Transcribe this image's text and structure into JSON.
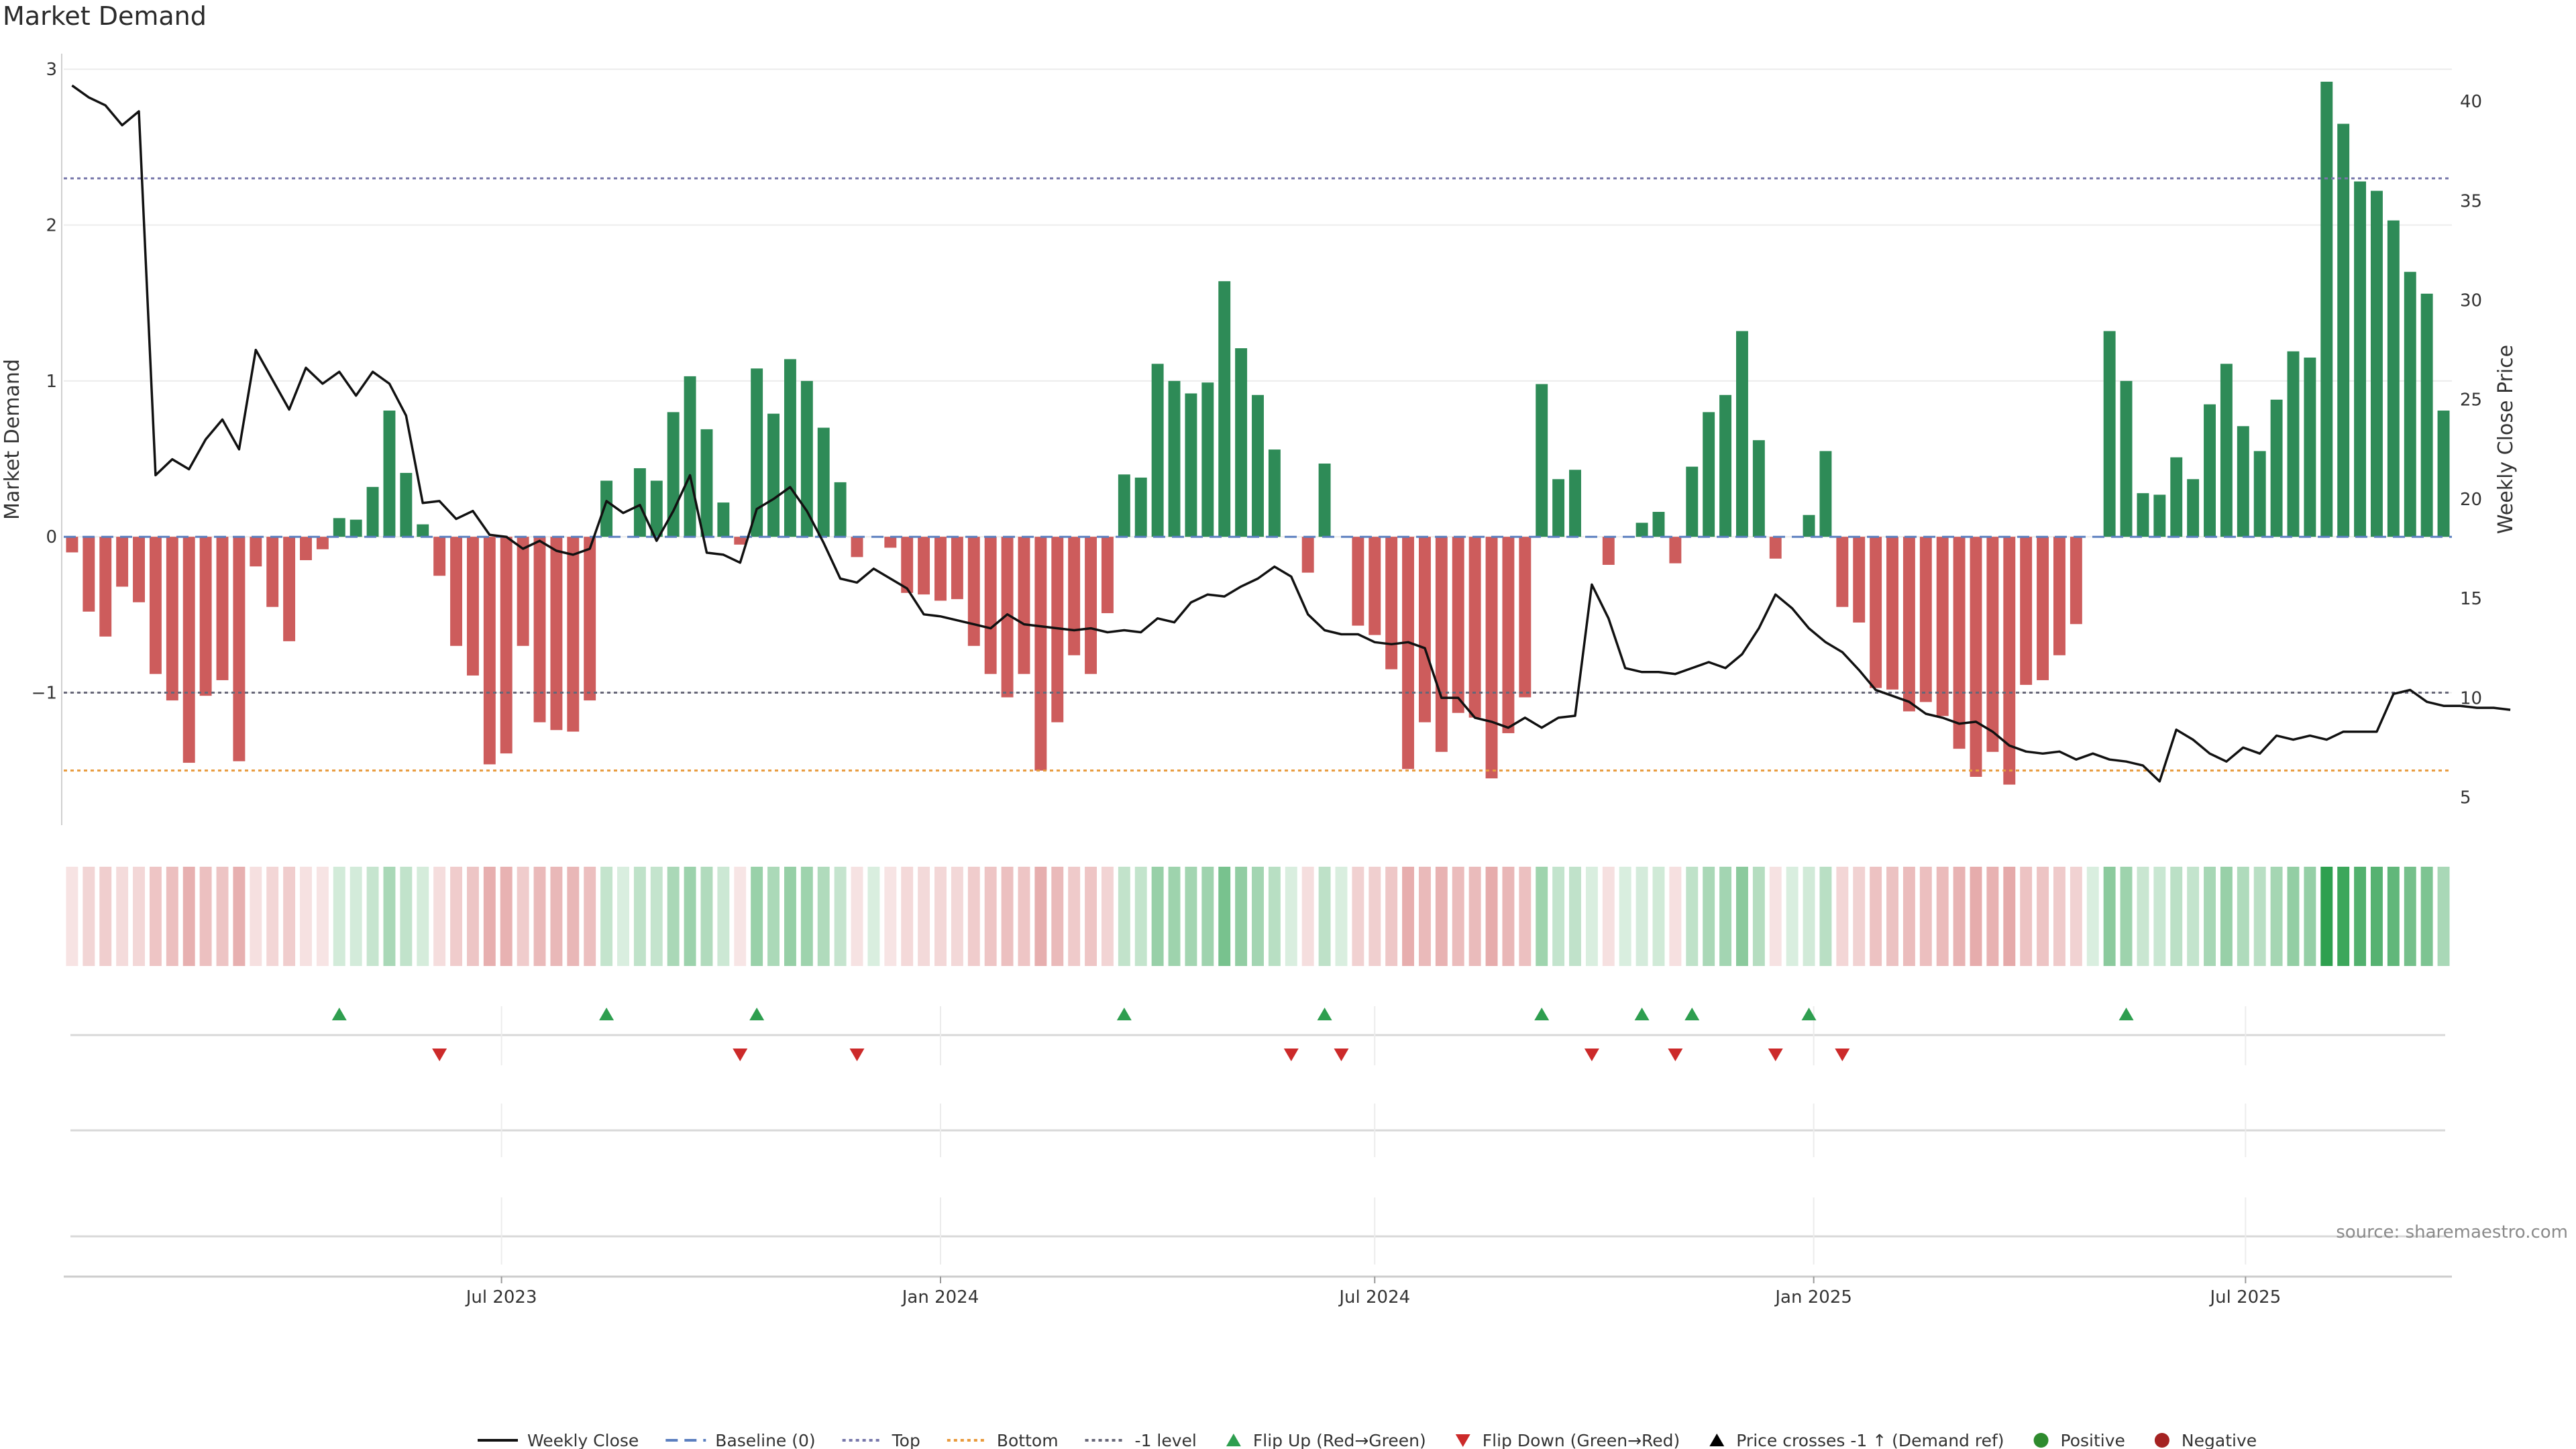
{
  "title": "Market Demand",
  "source": "source: sharemaestro.com",
  "colors": {
    "positive": "#2e8b57",
    "negative": "#cd5c5c",
    "price": "#111111",
    "baseline": "#5b7fbf",
    "top": "#7777aa",
    "bottom": "#e89a3c",
    "level": "#666677",
    "flip_up": "#2e9e4f",
    "flip_down": "#cc2a2a"
  },
  "chart_data": {
    "type": "bar",
    "x_start": "2023-01-02",
    "x_step_days": 7,
    "ylabel": "Market Demand",
    "y2label": "Weekly Close Price",
    "ylim": [
      -1.85,
      3.1
    ],
    "y_ticks": [
      3,
      2,
      1,
      0,
      -1
    ],
    "y_tick_labels": [
      "3",
      "2",
      "1",
      "0",
      "−1"
    ],
    "y2lim": [
      3.6,
      42.4
    ],
    "y2_ticks": [
      40,
      35,
      30,
      25,
      20,
      15,
      10,
      5
    ],
    "x_ticks": [
      {
        "label": "Jul 2023",
        "date": "2023-07-01"
      },
      {
        "label": "Jan 2024",
        "date": "2024-01-01"
      },
      {
        "label": "Jul 2024",
        "date": "2024-07-01"
      },
      {
        "label": "Jan 2025",
        "date": "2025-01-01"
      },
      {
        "label": "Jul 2025",
        "date": "2025-07-01"
      }
    ],
    "reference_lines": {
      "baseline": 0,
      "top": 2.3,
      "bottom": -1.5,
      "level": -1
    },
    "demand": [
      -0.1,
      -0.48,
      -0.64,
      -0.32,
      -0.42,
      -0.88,
      -1.05,
      -1.45,
      -1.02,
      -0.92,
      -1.44,
      -0.19,
      -0.45,
      -0.67,
      -0.15,
      -0.08,
      0.12,
      0.11,
      0.32,
      0.81,
      0.41,
      0.08,
      -0.25,
      -0.7,
      -0.89,
      -1.46,
      -1.39,
      -0.7,
      -1.19,
      -1.24,
      -1.25,
      -1.05,
      0.36,
      0.0,
      0.44,
      0.36,
      0.8,
      1.03,
      0.69,
      0.22,
      -0.05,
      1.08,
      0.79,
      1.14,
      1.0,
      0.7,
      0.35,
      -0.13,
      0.0,
      -0.07,
      -0.36,
      -0.37,
      -0.41,
      -0.4,
      -0.7,
      -0.88,
      -1.03,
      -0.88,
      -1.5,
      -1.19,
      -0.76,
      -0.88,
      -0.49,
      0.4,
      0.38,
      1.11,
      1.0,
      0.92,
      0.99,
      1.64,
      1.21,
      0.91,
      0.56,
      0.0,
      -0.23,
      0.47,
      0.0,
      -0.57,
      -0.63,
      -0.85,
      -1.49,
      -1.19,
      -1.38,
      -1.13,
      -1.16,
      -1.55,
      -1.26,
      -1.03,
      0.98,
      0.37,
      0.43,
      0.0,
      -0.18,
      0.0,
      0.09,
      0.16,
      -0.17,
      0.45,
      0.8,
      0.91,
      1.32,
      0.62,
      -0.14,
      0.0,
      0.14,
      0.55,
      -0.45,
      -0.55,
      -0.97,
      -0.98,
      -1.12,
      -1.06,
      -1.15,
      -1.36,
      -1.54,
      -1.38,
      -1.59,
      -0.95,
      -0.92,
      -0.76,
      -0.56,
      0.0,
      1.32,
      1.0,
      0.28,
      0.27,
      0.51,
      0.37,
      0.85,
      1.11,
      0.71,
      0.55,
      0.88,
      1.19,
      1.15,
      2.92,
      2.65,
      2.28,
      2.22,
      2.03,
      1.7,
      1.56,
      0.81
    ],
    "weekly_close": [
      40.8,
      40.2,
      39.8,
      38.8,
      39.5,
      21.2,
      22.0,
      21.5,
      23.0,
      24.0,
      22.5,
      27.5,
      26.0,
      24.5,
      26.6,
      25.8,
      26.4,
      25.2,
      26.4,
      25.8,
      24.2,
      19.8,
      19.9,
      19.0,
      19.4,
      18.2,
      18.1,
      17.5,
      17.9,
      17.4,
      17.2,
      17.5,
      19.9,
      19.3,
      19.7,
      17.9,
      19.4,
      21.2,
      17.3,
      17.2,
      16.8,
      19.5,
      20.0,
      20.6,
      19.4,
      17.8,
      16.0,
      15.8,
      16.5,
      16.0,
      15.5,
      14.2,
      14.1,
      13.9,
      13.7,
      13.5,
      14.2,
      13.7,
      13.6,
      13.5,
      13.4,
      13.5,
      13.3,
      13.4,
      13.3,
      14.0,
      13.8,
      14.8,
      15.2,
      15.1,
      15.6,
      16.0,
      16.6,
      16.1,
      14.2,
      13.4,
      13.2,
      13.2,
      12.8,
      12.7,
      12.8,
      12.5,
      10.0,
      10.0,
      9.0,
      8.8,
      8.5,
      9.0,
      8.5,
      9.0,
      9.1,
      15.7,
      14.0,
      11.5,
      11.3,
      11.3,
      11.2,
      11.5,
      11.8,
      11.5,
      12.2,
      13.5,
      15.2,
      14.5,
      13.5,
      12.8,
      12.3,
      11.4,
      10.4,
      10.1,
      9.8,
      9.2,
      9.0,
      8.7,
      8.8,
      8.3,
      7.6,
      7.3,
      7.2,
      7.3,
      6.9,
      7.2,
      6.9,
      6.8,
      6.6,
      5.8,
      8.4,
      7.9,
      7.2,
      6.8,
      7.5,
      7.2,
      8.1,
      7.9,
      8.1,
      7.9,
      8.3,
      8.3,
      8.3,
      10.2,
      10.4,
      9.8,
      9.6,
      9.6,
      9.5,
      9.5,
      9.4
    ],
    "flip_up_weeks": [
      16,
      32,
      41,
      63,
      75,
      88,
      94,
      97,
      104,
      123
    ],
    "flip_down_weeks": [
      22,
      40,
      47,
      73,
      76,
      91,
      96,
      102,
      106
    ],
    "legend": [
      {
        "label": "Weekly Close",
        "kind": "line"
      },
      {
        "label": "Baseline (0)",
        "kind": "dash"
      },
      {
        "label": "Top",
        "kind": "dotted"
      },
      {
        "label": "Bottom",
        "kind": "dotted-orange"
      },
      {
        "label": "-1 level",
        "kind": "dotted-gray"
      },
      {
        "label": "Flip Up (Red→Green)",
        "kind": "tri-up"
      },
      {
        "label": "Flip Down (Green→Red)",
        "kind": "tri-down"
      },
      {
        "label": "Price crosses -1 ↑ (Demand ref)",
        "kind": "tri-up-black"
      },
      {
        "label": "Positive",
        "kind": "dot-green"
      },
      {
        "label": "Negative",
        "kind": "dot-red"
      }
    ]
  }
}
